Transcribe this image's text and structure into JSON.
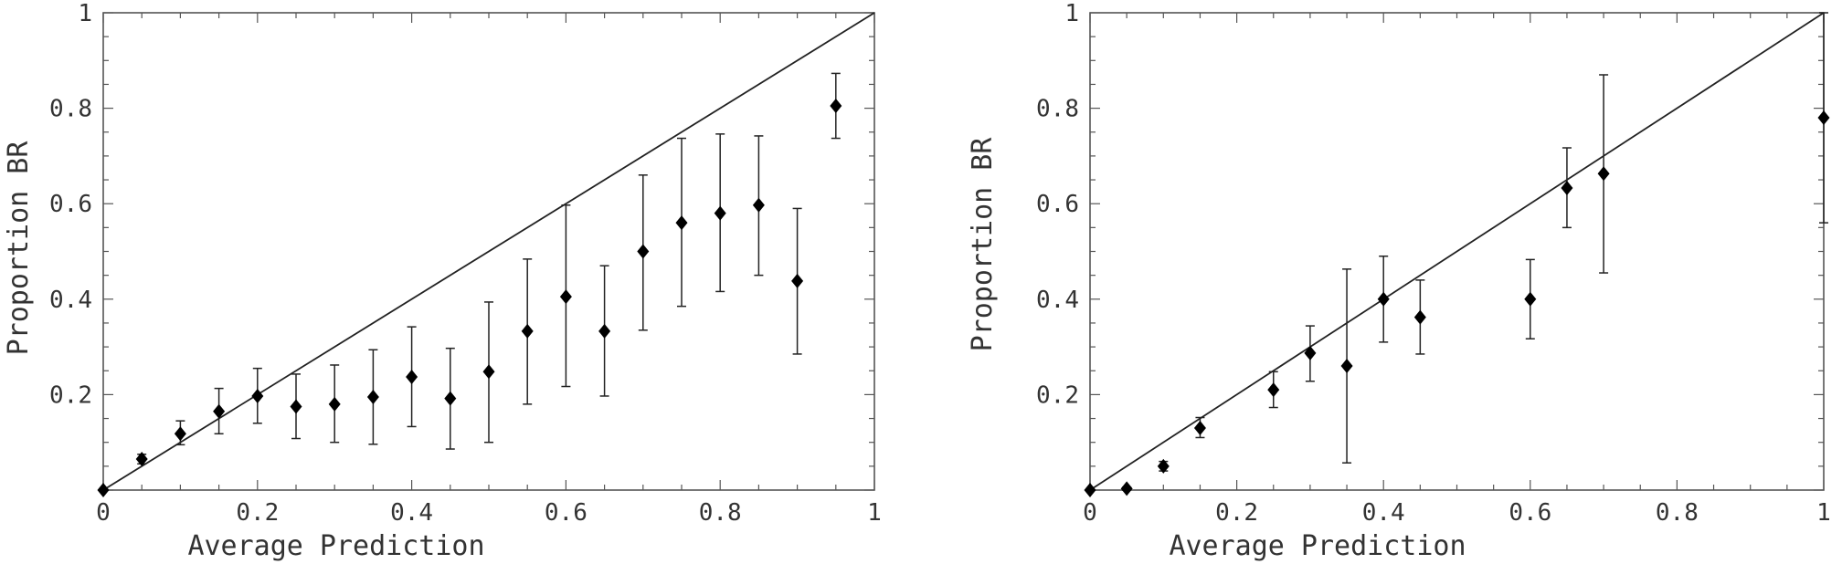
{
  "chart_data": [
    {
      "type": "scatter",
      "xlabel": "Average Prediction",
      "ylabel": "Proportion BR",
      "xlim": [
        0,
        1
      ],
      "ylim": [
        0,
        1
      ],
      "xticks": [
        "0",
        "0.2",
        "0.4",
        "0.6",
        "0.8",
        "1"
      ],
      "yticks": [
        "0.2",
        "0.4",
        "0.6",
        "0.8",
        "1"
      ],
      "reference_line": [
        [
          0,
          0
        ],
        [
          1,
          1
        ]
      ],
      "grid": false,
      "points": [
        {
          "x": 0.0,
          "y": 0.0,
          "lo": 0.0,
          "hi": 0.0
        },
        {
          "x": 0.05,
          "y": 0.065,
          "lo": 0.055,
          "hi": 0.075
        },
        {
          "x": 0.1,
          "y": 0.118,
          "lo": 0.095,
          "hi": 0.145
        },
        {
          "x": 0.15,
          "y": 0.165,
          "lo": 0.118,
          "hi": 0.213
        },
        {
          "x": 0.2,
          "y": 0.197,
          "lo": 0.14,
          "hi": 0.255
        },
        {
          "x": 0.25,
          "y": 0.175,
          "lo": 0.108,
          "hi": 0.243
        },
        {
          "x": 0.3,
          "y": 0.18,
          "lo": 0.1,
          "hi": 0.262
        },
        {
          "x": 0.35,
          "y": 0.195,
          "lo": 0.096,
          "hi": 0.294
        },
        {
          "x": 0.4,
          "y": 0.237,
          "lo": 0.133,
          "hi": 0.342
        },
        {
          "x": 0.45,
          "y": 0.192,
          "lo": 0.086,
          "hi": 0.297
        },
        {
          "x": 0.5,
          "y": 0.248,
          "lo": 0.1,
          "hi": 0.394
        },
        {
          "x": 0.55,
          "y": 0.333,
          "lo": 0.18,
          "hi": 0.484
        },
        {
          "x": 0.6,
          "y": 0.405,
          "lo": 0.217,
          "hi": 0.597
        },
        {
          "x": 0.65,
          "y": 0.333,
          "lo": 0.197,
          "hi": 0.47
        },
        {
          "x": 0.7,
          "y": 0.5,
          "lo": 0.335,
          "hi": 0.66
        },
        {
          "x": 0.75,
          "y": 0.56,
          "lo": 0.385,
          "hi": 0.737
        },
        {
          "x": 0.8,
          "y": 0.58,
          "lo": 0.416,
          "hi": 0.746
        },
        {
          "x": 0.85,
          "y": 0.597,
          "lo": 0.45,
          "hi": 0.742
        },
        {
          "x": 0.9,
          "y": 0.438,
          "lo": 0.285,
          "hi": 0.59
        },
        {
          "x": 0.95,
          "y": 0.805,
          "lo": 0.737,
          "hi": 0.873
        }
      ]
    },
    {
      "type": "scatter",
      "xlabel": "Average Prediction",
      "ylabel": "Proportion BR",
      "xlim": [
        0,
        1
      ],
      "ylim": [
        0,
        1
      ],
      "xticks": [
        "0",
        "0.2",
        "0.4",
        "0.6",
        "0.8",
        "1"
      ],
      "yticks": [
        "0.2",
        "0.4",
        "0.6",
        "0.8",
        "1"
      ],
      "reference_line": [
        [
          0,
          0
        ],
        [
          1,
          1
        ]
      ],
      "grid": false,
      "points": [
        {
          "x": 0.0,
          "y": 0.0,
          "lo": 0.0,
          "hi": 0.0
        },
        {
          "x": 0.05,
          "y": 0.003,
          "lo": 0.0,
          "hi": 0.006
        },
        {
          "x": 0.1,
          "y": 0.05,
          "lo": 0.04,
          "hi": 0.06
        },
        {
          "x": 0.15,
          "y": 0.13,
          "lo": 0.11,
          "hi": 0.152
        },
        {
          "x": 0.25,
          "y": 0.21,
          "lo": 0.173,
          "hi": 0.248
        },
        {
          "x": 0.3,
          "y": 0.287,
          "lo": 0.228,
          "hi": 0.344
        },
        {
          "x": 0.35,
          "y": 0.26,
          "lo": 0.057,
          "hi": 0.463
        },
        {
          "x": 0.4,
          "y": 0.4,
          "lo": 0.31,
          "hi": 0.49
        },
        {
          "x": 0.45,
          "y": 0.362,
          "lo": 0.285,
          "hi": 0.44
        },
        {
          "x": 0.6,
          "y": 0.4,
          "lo": 0.317,
          "hi": 0.483
        },
        {
          "x": 0.65,
          "y": 0.633,
          "lo": 0.55,
          "hi": 0.717
        },
        {
          "x": 0.7,
          "y": 0.663,
          "lo": 0.455,
          "hi": 0.87
        },
        {
          "x": 1.0,
          "y": 0.78,
          "lo": 0.56,
          "hi": 1.0
        }
      ]
    }
  ]
}
